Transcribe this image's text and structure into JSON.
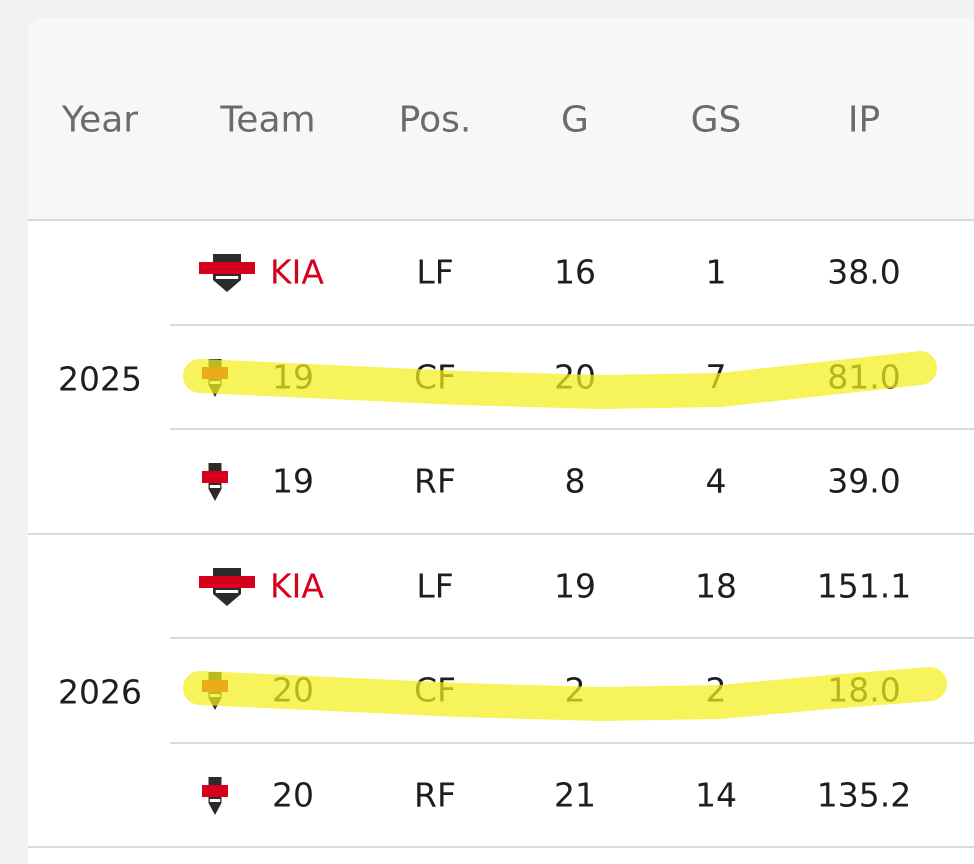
{
  "table": {
    "headers": [
      "Year",
      "Team",
      "Pos.",
      "G",
      "GS",
      "IP"
    ],
    "groups": [
      {
        "year": "2025",
        "rows": [
          [
            "KIA",
            "LF",
            "16",
            "1",
            "38.0"
          ],
          [
            "19",
            "CF",
            "20",
            "7",
            "81.0"
          ],
          [
            "19",
            "RF",
            "8",
            "4",
            "39.0"
          ]
        ]
      },
      {
        "year": "2026",
        "rows": [
          [
            "KIA",
            "LF",
            "19",
            "18",
            "151.1"
          ],
          [
            "20",
            "CF",
            "2",
            "2",
            "18.0"
          ],
          [
            "20",
            "RF",
            "21",
            "14",
            "135.2"
          ]
        ]
      }
    ]
  }
}
